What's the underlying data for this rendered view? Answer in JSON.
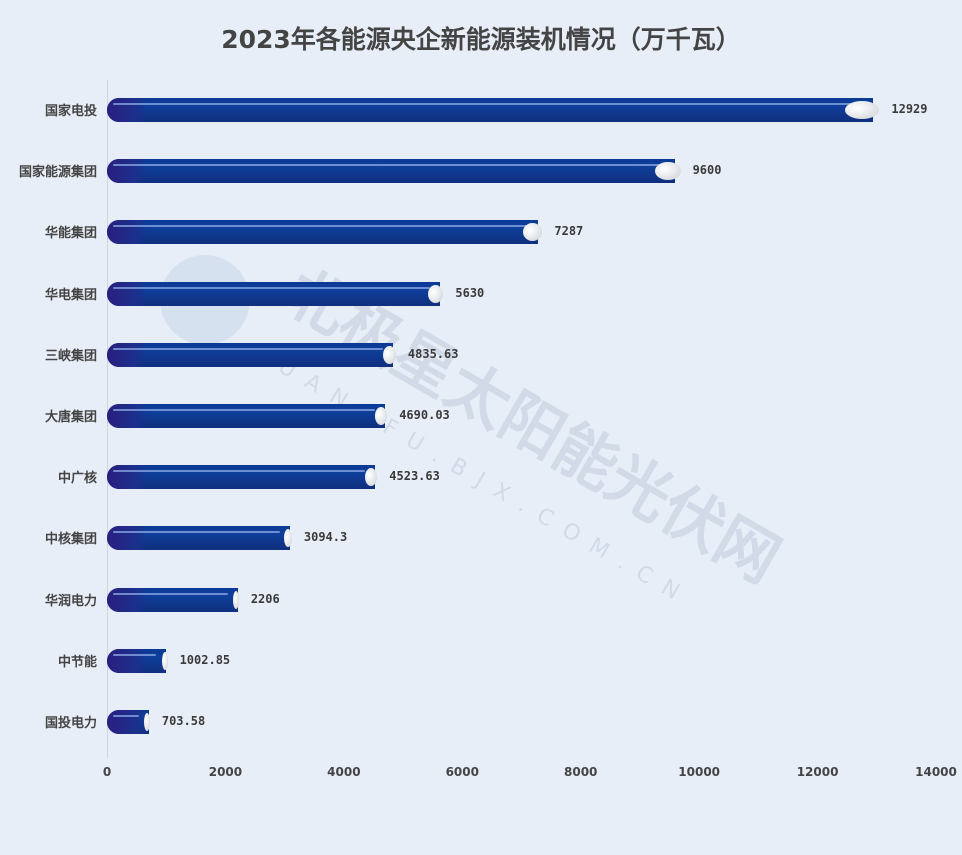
{
  "title": "2023年各能源央企新能源装机情况（万千瓦）",
  "chart_data": {
    "type": "bar",
    "orientation": "horizontal",
    "title": "2023年各能源央企新能源装机情况（万千瓦）",
    "xlabel": "",
    "ylabel": "",
    "xlim": [
      0,
      14000
    ],
    "x_ticks": [
      "0",
      "2000",
      "4000",
      "6000",
      "8000",
      "10000",
      "12000",
      "14000"
    ],
    "categories": [
      "国家电投",
      "国家能源集团",
      "华能集团",
      "华电集团",
      "三峡集团",
      "大唐集团",
      "中广核",
      "中核集团",
      "华润电力",
      "中节能",
      "国投电力"
    ],
    "values": [
      12929,
      9600,
      7287,
      5630,
      4835.63,
      4690.03,
      4523.63,
      3094.3,
      2206,
      1002.85,
      703.58
    ],
    "value_labels": [
      "12929",
      "9600",
      "7287",
      "5630",
      "4835.63",
      "4690.03",
      "4523.63",
      "3094.3",
      "2206",
      "1002.85",
      "703.58"
    ],
    "grid": false,
    "legend": null,
    "bar_color": "#0e3f9b"
  },
  "watermark": {
    "text": "北极星太阳能光伏网",
    "subtext": "GUANGFU.BJX.COM.CN"
  }
}
